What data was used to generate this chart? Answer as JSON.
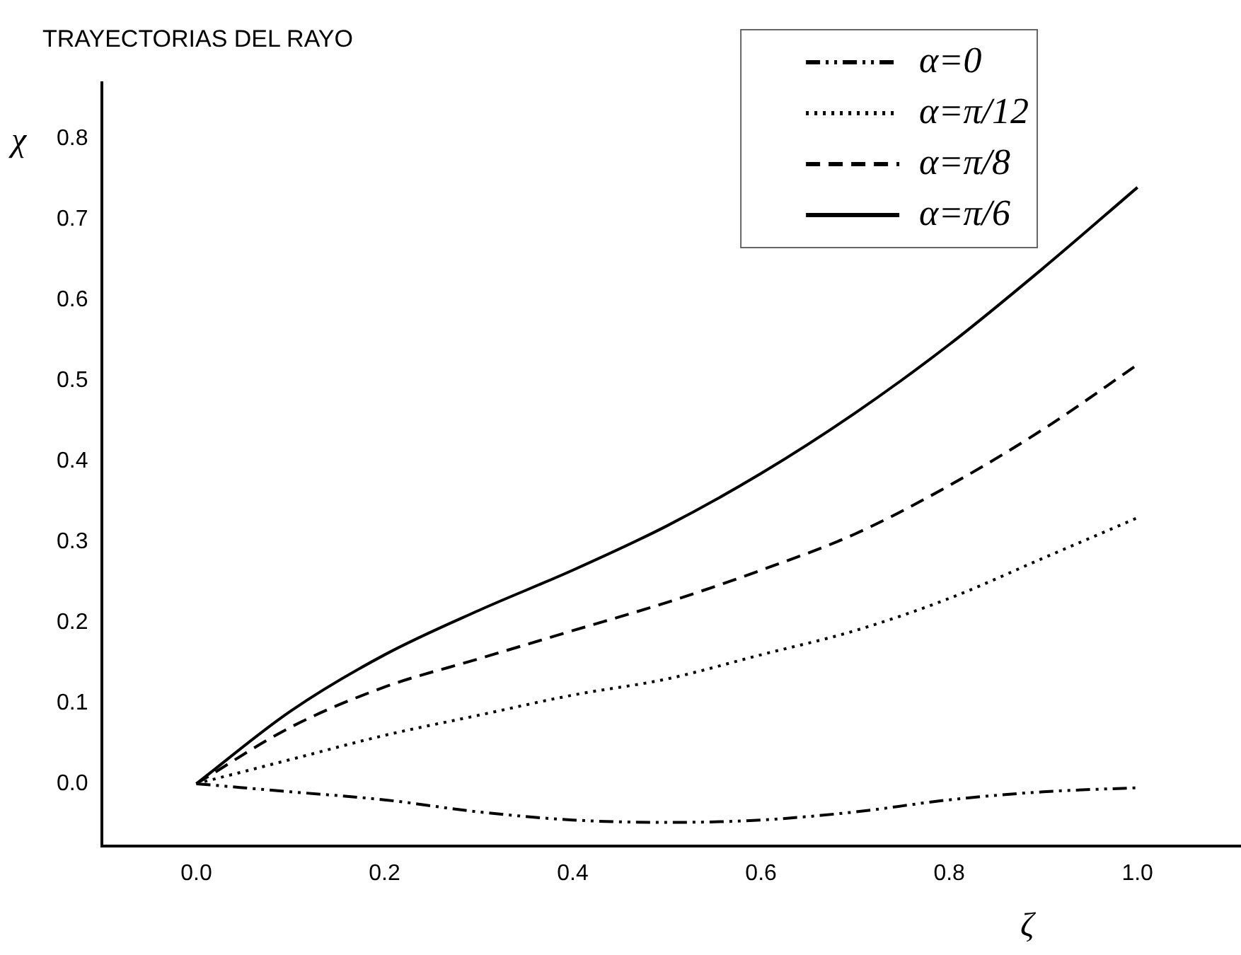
{
  "chart_data": {
    "type": "line",
    "title": "TRAYECTORIAS DEL RAYO",
    "xlabel": "ζ",
    "ylabel": "χ",
    "xlim": [
      -0.1,
      1.11
    ],
    "xticks": [
      {
        "value": 0,
        "label": "0.0"
      },
      0.2,
      0.4,
      0.6,
      0.8,
      {
        "value": 1,
        "label": "1.0"
      }
    ],
    "ylim": [
      -0.077,
      0.87
    ],
    "yticks": [
      {
        "value": 0,
        "label": "0.0"
      },
      0.1,
      0.2,
      0.3,
      0.4,
      0.5,
      0.6,
      0.7,
      0.8
    ],
    "grid": false,
    "legend": "top right",
    "marker": "none",
    "series": [
      {
        "name": "α=0",
        "color": "#000000",
        "line_style": "dashdot",
        "x": [
          0,
          0.1,
          0.2,
          0.3,
          0.4,
          0.5,
          0.6,
          0.7,
          0.8,
          0.9,
          1.0
        ],
        "values": [
          0,
          -0.01,
          -0.02,
          -0.035,
          -0.045,
          -0.048,
          -0.045,
          -0.035,
          -0.02,
          -0.01,
          -0.005
        ]
      },
      {
        "name": "α=π/12",
        "color": "#000000",
        "line_style": "dotted",
        "x": [
          0,
          0.1,
          0.2,
          0.3,
          0.4,
          0.5,
          0.6,
          0.7,
          0.8,
          0.9,
          1.0
        ],
        "values": [
          0,
          0.03,
          0.06,
          0.085,
          0.11,
          0.13,
          0.16,
          0.19,
          0.23,
          0.28,
          0.33
        ]
      },
      {
        "name": "α=π/8",
        "color": "#000000",
        "line_style": "dashed",
        "x": [
          0,
          0.1,
          0.2,
          0.3,
          0.4,
          0.5,
          0.6,
          0.7,
          0.8,
          0.9,
          1.0
        ],
        "values": [
          0,
          0.07,
          0.12,
          0.155,
          0.19,
          0.225,
          0.265,
          0.31,
          0.37,
          0.44,
          0.52
        ]
      },
      {
        "name": "α=π/6",
        "color": "#000000",
        "line_style": "solid",
        "x": [
          0,
          0.1,
          0.2,
          0.3,
          0.4,
          0.5,
          0.6,
          0.7,
          0.8,
          0.9,
          1.0
        ],
        "values": [
          0,
          0.09,
          0.16,
          0.215,
          0.265,
          0.32,
          0.385,
          0.46,
          0.545,
          0.64,
          0.74
        ]
      }
    ]
  }
}
